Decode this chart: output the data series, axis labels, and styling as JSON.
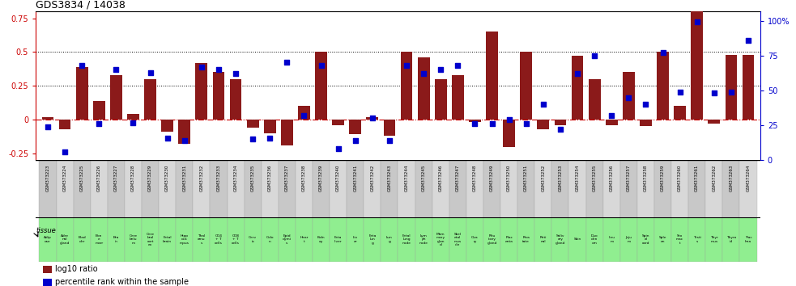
{
  "title": "GDS3834 / 14038",
  "gsm_labels": [
    "GSM373223",
    "GSM373224",
    "GSM373225",
    "GSM373226",
    "GSM373227",
    "GSM373228",
    "GSM373229",
    "GSM373230",
    "GSM373231",
    "GSM373232",
    "GSM373233",
    "GSM373234",
    "GSM373235",
    "GSM373236",
    "GSM373237",
    "GSM373238",
    "GSM373239",
    "GSM373240",
    "GSM373241",
    "GSM373242",
    "GSM373243",
    "GSM373244",
    "GSM373245",
    "GSM373246",
    "GSM373247",
    "GSM373248",
    "GSM373249",
    "GSM373250",
    "GSM373251",
    "GSM373252",
    "GSM373253",
    "GSM373254",
    "GSM373255",
    "GSM373256",
    "GSM373257",
    "GSM373258",
    "GSM373259",
    "GSM373260",
    "GSM373261",
    "GSM373262",
    "GSM373263",
    "GSM373264"
  ],
  "tissue_labels": [
    "Adip\nose",
    "Adre\nnal\ngland",
    "Blad\nder",
    "Bon\ne\nmarr",
    "Bra\nin",
    "Cere\nbelu\nm",
    "Cere\nbral\ncort\nex",
    "Fetal\nbrain",
    "Hipp\noca\nmpus",
    "Thal\namu\ns",
    "CD4\n+ T\ncells",
    "CD8\n+ T\ncells",
    "Cerv\nix",
    "Colo\nn",
    "Epid\ndymi\ns",
    "Hear\nt",
    "Kidn\ney",
    "Feta\nliver",
    "Liv\ner",
    "Feta\nlun\ng",
    "Lun\ng",
    "Fetal\nlung\nnode",
    "Lym\nph\nnode",
    "Mam\nmary\nglan\nd",
    "Skel\netal\nmus\ncle",
    "Ova\nry",
    "Pitu\nitary\ngland",
    "Plac\nenta",
    "Pros\ntate",
    "Reti\nnal",
    "Saliv\nary\ngland",
    "Skin",
    "Duo\nden\num",
    "Ileu\nm",
    "Jeju\nm",
    "Spin\nal\ncord",
    "Sple\nen",
    "Sto\nmac\nt",
    "Testi\ns",
    "Thyr\nmus",
    "Thyro\nid",
    "Trac\nhea"
  ],
  "log10_ratio": [
    0.02,
    -0.07,
    0.39,
    0.14,
    0.33,
    0.04,
    0.3,
    -0.09,
    -0.18,
    0.42,
    0.35,
    0.3,
    -0.06,
    -0.1,
    -0.19,
    0.1,
    0.5,
    -0.04,
    -0.11,
    0.02,
    -0.12,
    0.5,
    0.46,
    0.3,
    0.33,
    -0.02,
    0.65,
    -0.2,
    0.5,
    -0.07,
    -0.04,
    0.47,
    0.3,
    -0.04,
    0.35,
    -0.05,
    0.5,
    0.1,
    0.98,
    -0.03,
    0.48,
    0.48
  ],
  "percentile": [
    24,
    6,
    68,
    26,
    65,
    27,
    63,
    16,
    14,
    67,
    65,
    62,
    15,
    16,
    70,
    32,
    68,
    8,
    14,
    30,
    14,
    68,
    62,
    65,
    68,
    26,
    26,
    29,
    26,
    40,
    22,
    62,
    75,
    32,
    45,
    40,
    77,
    49,
    99,
    48,
    49,
    86
  ],
  "bar_color": "#8B1A1A",
  "dot_color": "#0000CC",
  "bg_color": "#ffffff",
  "title_color": "#000000",
  "left_axis_color": "#CC0000",
  "right_axis_color": "#0000CC",
  "ylim_left": [
    -0.3,
    0.8
  ],
  "ylim_right": [
    0,
    106.67
  ],
  "yticks_left": [
    -0.25,
    0,
    0.25,
    0.5,
    0.75
  ],
  "ytick_labels_left": [
    "-0.25",
    "0",
    "0.25",
    "0.5",
    "0.75"
  ],
  "yticks_right": [
    0,
    25,
    50,
    75,
    100
  ],
  "ytick_labels_right": [
    "0",
    "25",
    "50",
    "75",
    "100%"
  ],
  "hlines_dotted": [
    0.25,
    0.5
  ],
  "zero_line_color": "#CC0000",
  "gsm_bg_color": "#C8C8C8",
  "tissue_bg_color": "#90EE90",
  "legend_red_label": "log10 ratio",
  "legend_blue_label": "percentile rank within the sample"
}
